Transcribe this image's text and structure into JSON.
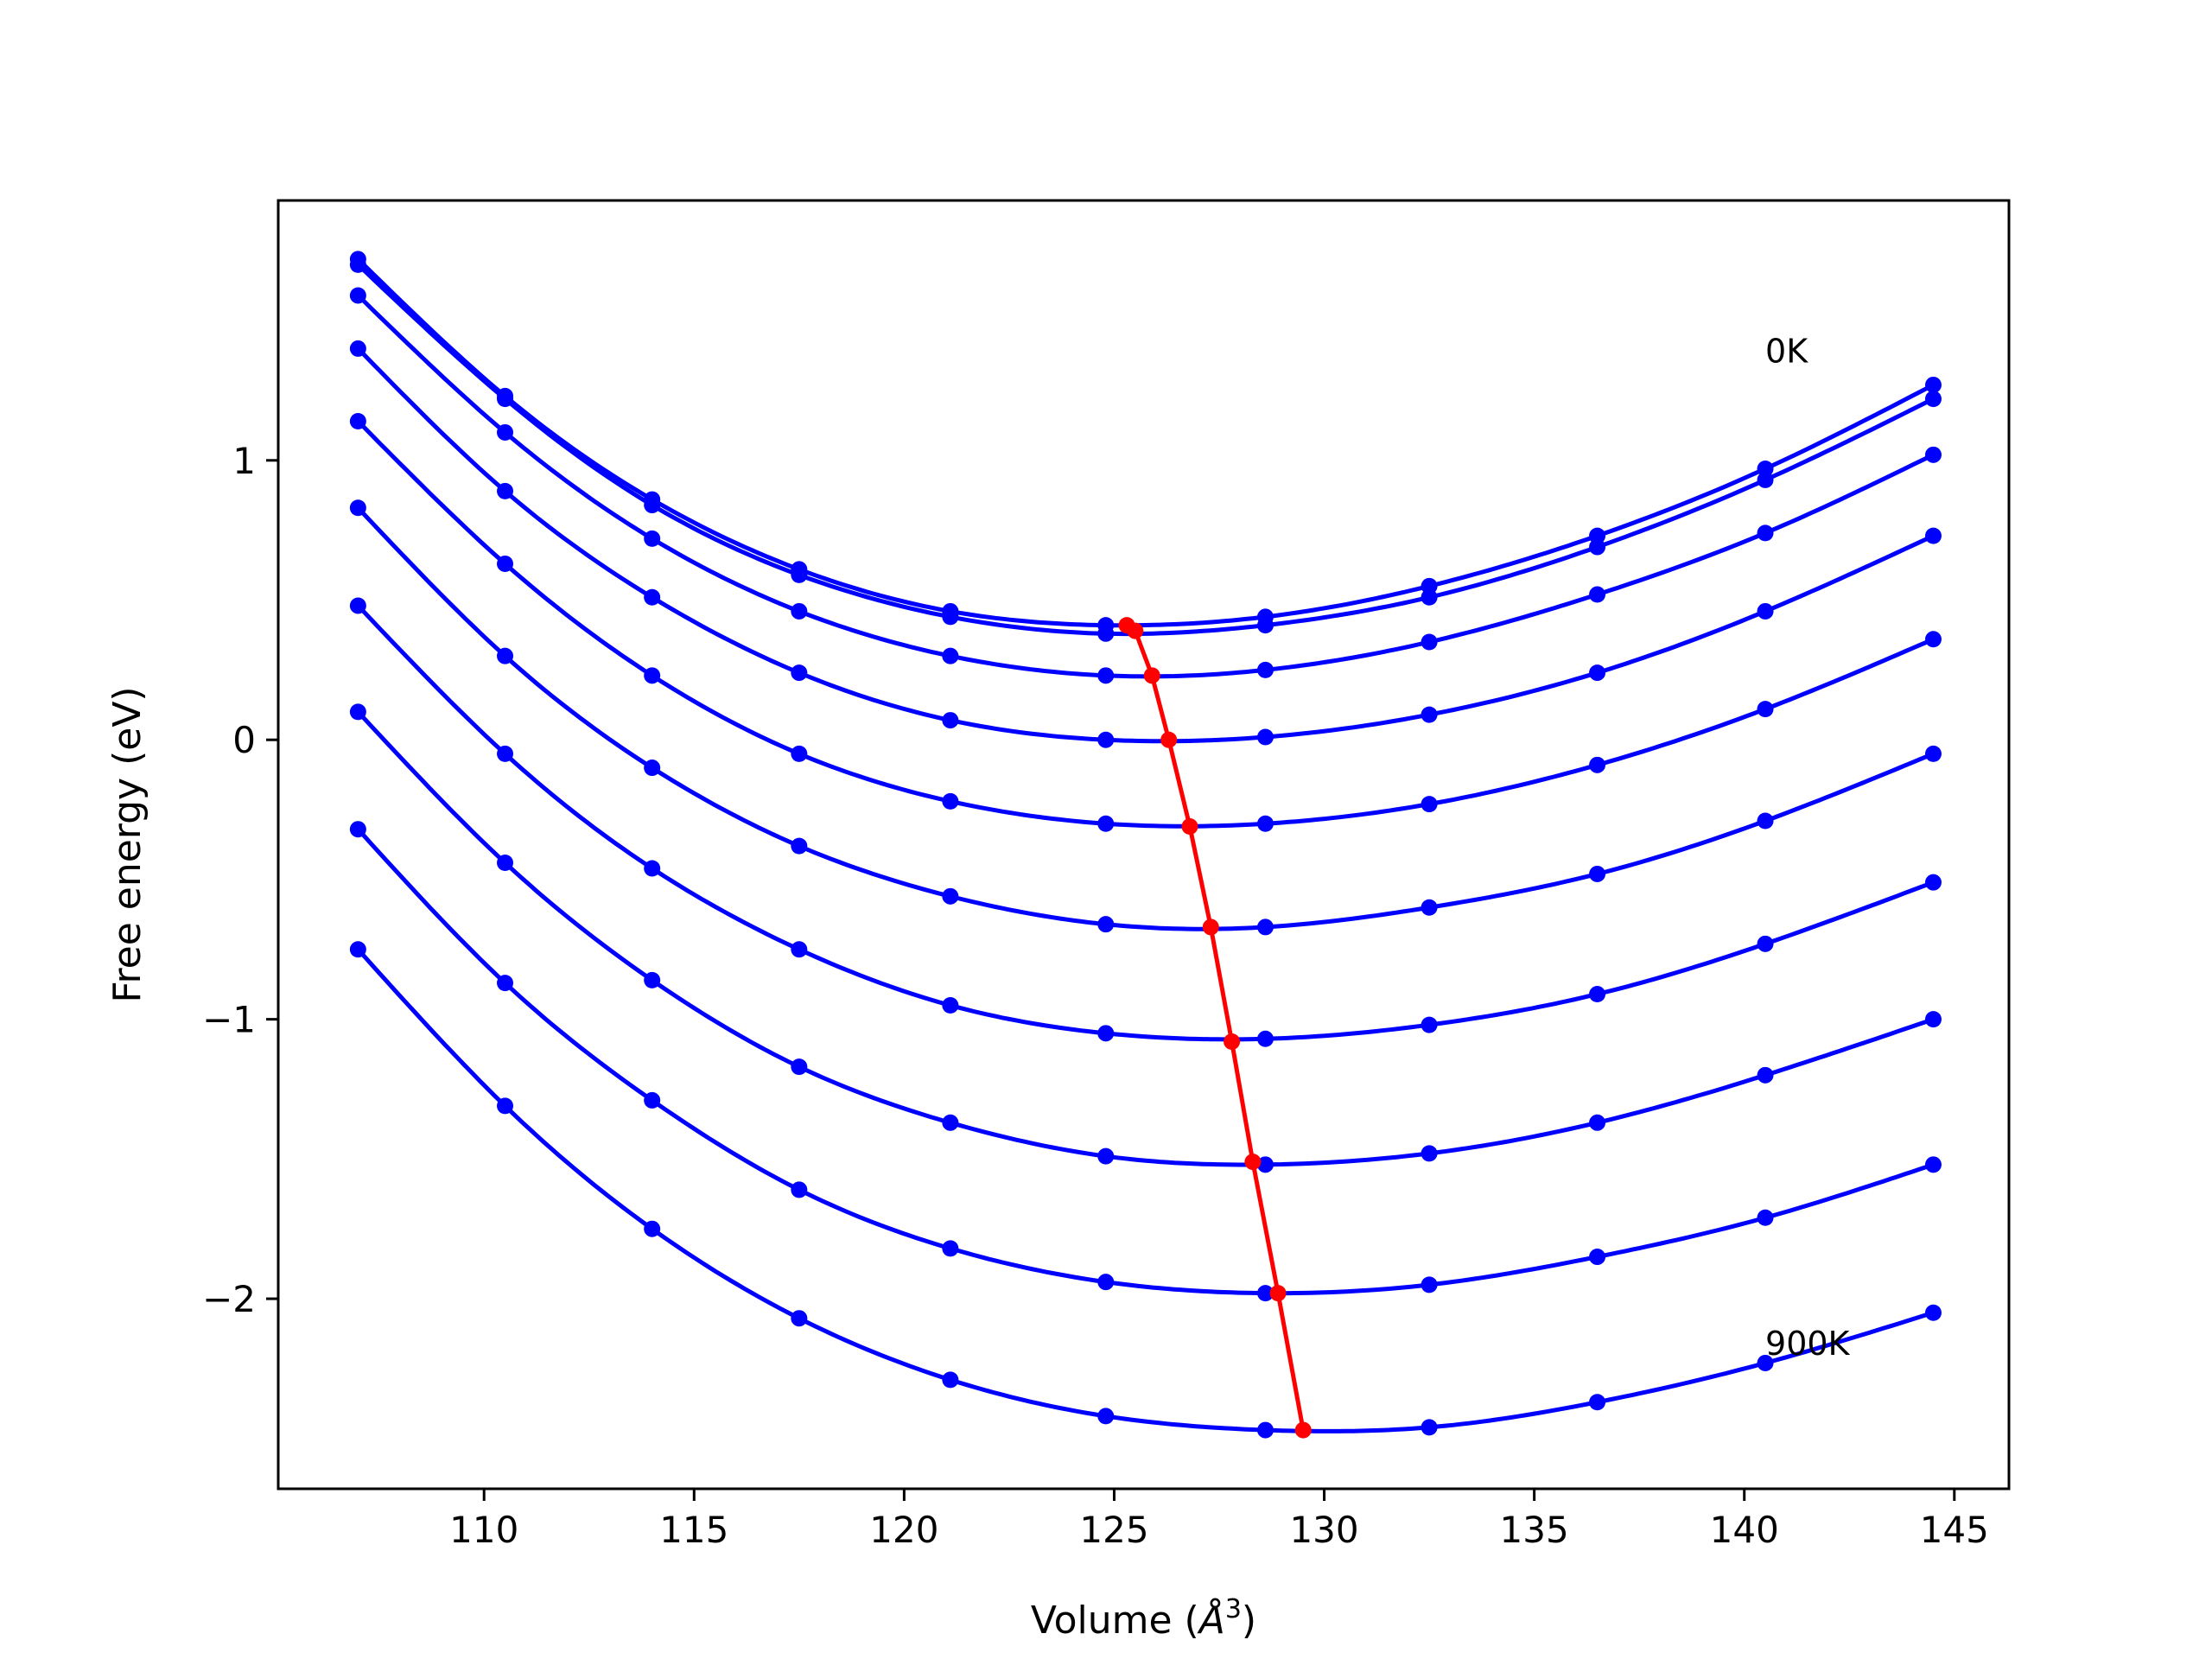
{
  "chart_data": {
    "type": "line",
    "xlabel_text": "Volume (",
    "xlabel_symbol": "Å",
    "xlabel_exp": "3",
    "xlabel_close": ")",
    "ylabel": "Free energy (eV)",
    "xlim": [
      105.1,
      146.3
    ],
    "ylim": [
      -2.68,
      1.93
    ],
    "xticks": [
      110,
      115,
      120,
      125,
      130,
      135,
      140,
      145
    ],
    "xtick_labels": [
      "110",
      "115",
      "120",
      "125",
      "130",
      "135",
      "140",
      "145"
    ],
    "yticks": [
      -2,
      -1,
      0,
      1
    ],
    "ytick_labels": [
      "−2",
      "−1",
      "0",
      "1"
    ],
    "annotations": [
      {
        "text": "0K",
        "x": 140.5,
        "y": 1.35
      },
      {
        "text": "900K",
        "x": 140.5,
        "y": -2.2
      }
    ],
    "x": [
      107.0,
      110.5,
      114.0,
      117.5,
      121.1,
      124.8,
      128.6,
      132.5,
      136.5,
      140.5,
      144.5
    ],
    "series": [
      {
        "values": [
          1.72,
          1.23,
          0.86,
          0.61,
          0.46,
          0.41,
          0.44,
          0.55,
          0.73,
          0.97,
          1.27
        ]
      },
      {
        "values": [
          1.7,
          1.22,
          0.84,
          0.59,
          0.44,
          0.38,
          0.41,
          0.51,
          0.69,
          0.93,
          1.22
        ]
      },
      {
        "values": [
          1.59,
          1.1,
          0.72,
          0.46,
          0.3,
          0.23,
          0.25,
          0.35,
          0.52,
          0.74,
          1.02
        ]
      },
      {
        "values": [
          1.4,
          0.89,
          0.51,
          0.24,
          0.07,
          0.0,
          0.01,
          0.09,
          0.24,
          0.46,
          0.73
        ]
      },
      {
        "values": [
          1.14,
          0.63,
          0.23,
          -0.05,
          -0.22,
          -0.3,
          -0.3,
          -0.23,
          -0.09,
          0.11,
          0.36
        ]
      },
      {
        "values": [
          0.83,
          0.3,
          -0.1,
          -0.38,
          -0.56,
          -0.66,
          -0.67,
          -0.6,
          -0.48,
          -0.29,
          -0.05
        ]
      },
      {
        "values": [
          0.48,
          -0.05,
          -0.46,
          -0.75,
          -0.95,
          -1.05,
          -1.07,
          -1.02,
          -0.91,
          -0.73,
          -0.51
        ]
      },
      {
        "values": [
          0.1,
          -0.44,
          -0.86,
          -1.17,
          -1.37,
          -1.49,
          -1.52,
          -1.48,
          -1.37,
          -1.2,
          -1.0
        ]
      },
      {
        "values": [
          -0.32,
          -0.87,
          -1.29,
          -1.61,
          -1.82,
          -1.94,
          -1.98,
          -1.95,
          -1.85,
          -1.71,
          -1.52
        ]
      },
      {
        "values": [
          -0.75,
          -1.31,
          -1.75,
          -2.07,
          -2.29,
          -2.42,
          -2.47,
          -2.46,
          -2.37,
          -2.23,
          -2.05
        ]
      }
    ],
    "minima": {
      "x": [
        125.3,
        125.5,
        125.9,
        126.3,
        126.8,
        127.3,
        127.8,
        128.3,
        128.9,
        129.5
      ],
      "y": [
        0.41,
        0.39,
        0.23,
        0.0,
        -0.31,
        -0.67,
        -1.08,
        -1.51,
        -1.98,
        -2.47
      ]
    },
    "colors": {
      "curves": "#0000ff",
      "minima": "#ff0000",
      "axes": "#000000"
    }
  }
}
